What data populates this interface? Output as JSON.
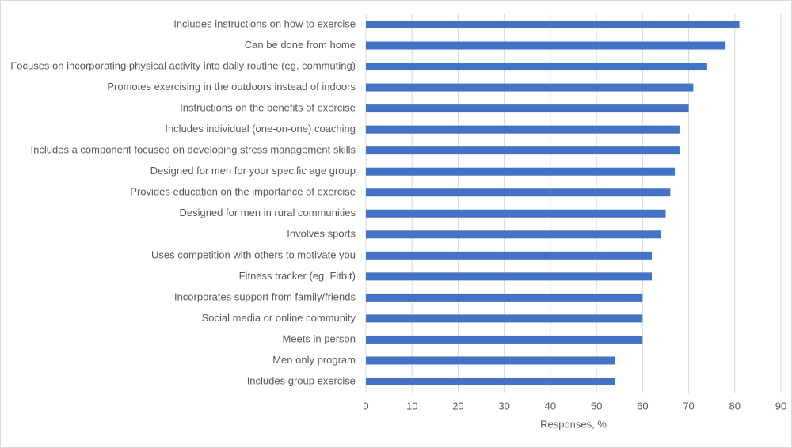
{
  "chart_data": {
    "type": "bar",
    "orientation": "horizontal",
    "xlabel": "Responses, %",
    "categories": [
      "Includes instructions on how to exercise",
      "Can be done from home",
      "Focuses on incorporating physical activity into daily routine (eg, commuting)",
      "Promotes exercising in the outdoors instead of indoors",
      "Instructions on the benefits of exercise",
      "Includes individual (one-on-one) coaching",
      "Includes a component focused on developing stress management skills",
      "Designed for men for your specific age group",
      "Provides education on the importance of exercise",
      "Designed for men in rural communities",
      "Involves sports",
      "Uses competition with others to motivate you",
      "Fitness tracker (eg, Fitbit)",
      "Incorporates support from family/friends",
      "Social media or online community",
      "Meets in person",
      "Men only program",
      "Includes group exercise"
    ],
    "values": [
      81,
      78,
      74,
      71,
      70,
      68,
      68,
      67,
      66,
      65,
      64,
      62,
      62,
      60,
      60,
      60,
      54,
      54
    ],
    "color": "#4472c4",
    "xlim": [
      0,
      90
    ],
    "xticks": [
      0,
      10,
      20,
      30,
      40,
      50,
      60,
      70,
      80,
      90
    ],
    "grid": true
  }
}
